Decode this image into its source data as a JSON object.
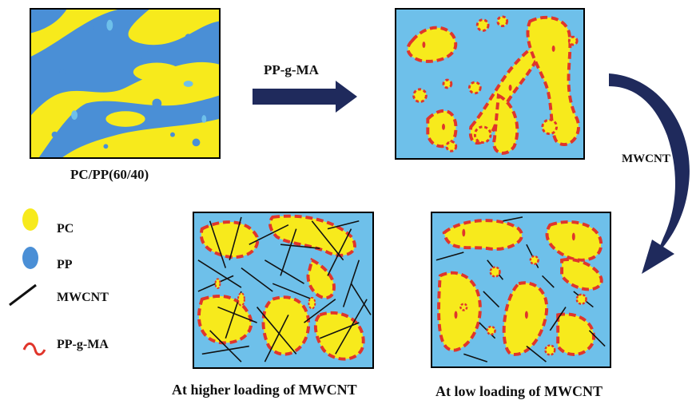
{
  "panels": {
    "initial_caption": "PC/PP(60/40)",
    "high_caption": "At higher loading of MWCNT",
    "low_caption": "At low loading of MWCNT"
  },
  "arrows": {
    "compatibilizer_label": "PP-g-MA",
    "filler_label": "MWCNT"
  },
  "legend": {
    "pc": "PC",
    "pp": "PP",
    "mwcnt": "MWCNT",
    "ppgma": "PP-g-MA"
  },
  "colors": {
    "pc_yellow": "#f7ea1c",
    "pp_blue_dark": "#4a8fd6",
    "pp_blue_light": "#6ec0ea",
    "ppgma_red": "#e0352b",
    "arrow_navy": "#1f2a5c",
    "mwcnt_black": "#111111"
  }
}
